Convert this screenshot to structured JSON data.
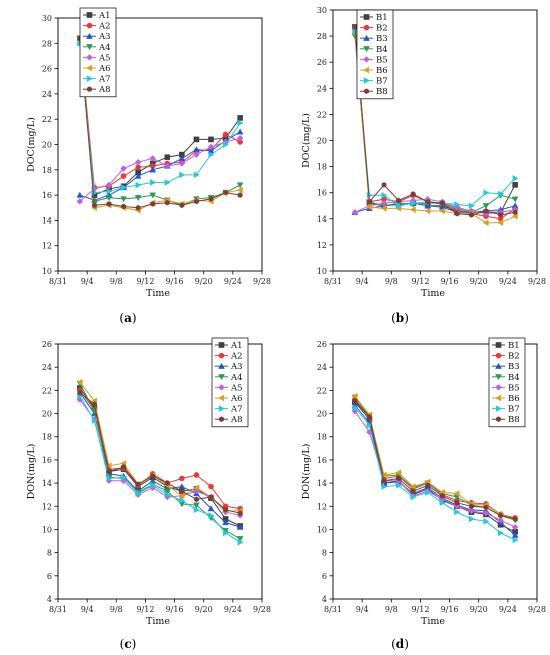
{
  "figure": {
    "panel_labels": [
      "a",
      "b",
      "c",
      "d"
    ]
  },
  "styles": {
    "colors": [
      "#404040",
      "#e83a3a",
      "#2255d0",
      "#2a9a55",
      "#c060e0",
      "#d8a020",
      "#22c8e0",
      "#7a3e33"
    ],
    "markers": [
      "square",
      "circle",
      "triangle-up",
      "triangle-down",
      "diamond",
      "triangle-left",
      "triangle-right",
      "hexagon"
    ]
  },
  "chart_data": [
    {
      "type": "line",
      "panel": "a",
      "xlabel": "Time",
      "ylabel": "DOC(mg/L)",
      "xticks": [
        "8/31",
        "9/4",
        "9/8",
        "9/12",
        "9/16",
        "9/20",
        "9/24",
        "9/28"
      ],
      "xlim": [
        "8/31",
        "9/28"
      ],
      "ylim": [
        10,
        30
      ],
      "yticks": [
        10,
        12,
        14,
        16,
        18,
        20,
        22,
        24,
        26,
        28,
        30
      ],
      "x": [
        "9/3",
        "9/5",
        "9/7",
        "9/9",
        "9/11",
        "9/13",
        "9/15",
        "9/17",
        "9/19",
        "9/21",
        "9/23",
        "9/25"
      ],
      "series": [
        {
          "name": "A1",
          "values": [
            28.4,
            16.0,
            16.5,
            16.7,
            17.8,
            18.5,
            19.0,
            19.2,
            20.4,
            20.4,
            20.5,
            22.1
          ]
        },
        {
          "name": "A2",
          "values": [
            28.4,
            16.6,
            16.7,
            17.5,
            18.2,
            18.3,
            18.5,
            18.6,
            19.5,
            19.6,
            20.8,
            20.2
          ]
        },
        {
          "name": "A3",
          "values": [
            16.0,
            15.6,
            16.0,
            16.6,
            17.5,
            18.0,
            18.3,
            18.9,
            19.6,
            19.5,
            20.3,
            21.0
          ]
        },
        {
          "name": "A4",
          "values": [
            28.4,
            15.5,
            15.8,
            15.7,
            15.8,
            16.0,
            15.6,
            15.2,
            15.7,
            15.8,
            16.2,
            16.8
          ]
        },
        {
          "name": "A5",
          "values": [
            15.5,
            16.5,
            16.8,
            18.1,
            18.6,
            18.9,
            18.3,
            18.5,
            19.2,
            19.8,
            20.2,
            20.5
          ]
        },
        {
          "name": "A6",
          "values": [
            28.4,
            15.0,
            15.2,
            15.0,
            14.8,
            15.4,
            15.6,
            15.3,
            15.6,
            15.5,
            16.2,
            16.4
          ]
        },
        {
          "name": "A7",
          "values": [
            28.0,
            16.2,
            16.3,
            16.6,
            16.8,
            17.0,
            17.0,
            17.6,
            17.6,
            19.2,
            20.0,
            21.7
          ]
        },
        {
          "name": "A8",
          "values": [
            28.4,
            15.2,
            15.3,
            15.1,
            15.0,
            15.3,
            15.4,
            15.2,
            15.5,
            15.7,
            16.2,
            16.0
          ]
        }
      ]
    },
    {
      "type": "line",
      "panel": "b",
      "xlabel": "Time",
      "ylabel": "DOC(mg/L)",
      "xticks": [
        "8/31",
        "9/4",
        "9/8",
        "9/12",
        "9/16",
        "9/20",
        "9/24",
        "9/28"
      ],
      "xlim": [
        "8/31",
        "9/28"
      ],
      "ylim": [
        10,
        30
      ],
      "yticks": [
        10,
        12,
        14,
        16,
        18,
        20,
        22,
        24,
        26,
        28,
        30
      ],
      "x": [
        "9/3",
        "9/5",
        "9/7",
        "9/9",
        "9/11",
        "9/13",
        "9/15",
        "9/17",
        "9/19",
        "9/21",
        "9/23",
        "9/25"
      ],
      "series": [
        {
          "name": "B1",
          "values": [
            28.7,
            15.2,
            15.0,
            15.1,
            15.2,
            15.0,
            15.0,
            14.6,
            14.5,
            14.5,
            14.5,
            16.6
          ]
        },
        {
          "name": "B2",
          "values": [
            28.7,
            15.3,
            15.5,
            15.3,
            15.8,
            15.3,
            15.1,
            14.7,
            14.4,
            14.2,
            14.0,
            14.8
          ]
        },
        {
          "name": "B3",
          "values": [
            14.5,
            14.8,
            15.0,
            15.1,
            15.2,
            15.0,
            14.9,
            14.5,
            14.5,
            14.6,
            14.7,
            15.0
          ]
        },
        {
          "name": "B4",
          "values": [
            28.0,
            15.3,
            15.0,
            15.2,
            15.1,
            15.2,
            15.2,
            14.8,
            14.5,
            15.0,
            15.8,
            15.5
          ]
        },
        {
          "name": "B5",
          "values": [
            14.5,
            15.0,
            15.2,
            15.3,
            15.4,
            15.5,
            15.3,
            14.9,
            14.6,
            14.4,
            14.5,
            14.7
          ]
        },
        {
          "name": "B6",
          "values": [
            28.2,
            14.9,
            14.8,
            14.8,
            14.7,
            14.6,
            14.6,
            14.4,
            14.4,
            13.7,
            13.7,
            14.2
          ]
        },
        {
          "name": "B7",
          "values": [
            28.4,
            15.8,
            15.8,
            15.0,
            15.2,
            15.3,
            15.2,
            15.1,
            15.0,
            16.0,
            15.9,
            17.1
          ]
        },
        {
          "name": "B8",
          "values": [
            28.7,
            15.3,
            16.6,
            15.4,
            15.9,
            15.3,
            15.2,
            14.4,
            14.3,
            14.6,
            14.3,
            14.5
          ]
        }
      ]
    },
    {
      "type": "line",
      "panel": "c",
      "xlabel": "Time",
      "ylabel": "DON(mg/L)",
      "xticks": [
        "8/31",
        "9/4",
        "9/8",
        "9/12",
        "9/16",
        "9/20",
        "9/24",
        "9/28"
      ],
      "xlim": [
        "8/31",
        "9/28"
      ],
      "ylim": [
        4,
        26
      ],
      "yticks": [
        4,
        6,
        8,
        10,
        12,
        14,
        16,
        18,
        20,
        22,
        24,
        26
      ],
      "x": [
        "9/3",
        "9/5",
        "9/7",
        "9/9",
        "9/11",
        "9/13",
        "9/15",
        "9/17",
        "9/19",
        "9/21",
        "9/23",
        "9/25"
      ],
      "series": [
        {
          "name": "A1",
          "values": [
            22.2,
            20.5,
            15.0,
            15.2,
            13.7,
            14.5,
            13.7,
            13.3,
            13.5,
            12.7,
            10.9,
            10.3
          ]
        },
        {
          "name": "A2",
          "values": [
            22.0,
            20.3,
            15.2,
            15.3,
            13.8,
            14.8,
            14.0,
            14.4,
            14.7,
            13.7,
            12.0,
            11.8
          ]
        },
        {
          "name": "A3",
          "values": [
            21.8,
            20.0,
            14.8,
            14.6,
            13.3,
            14.2,
            13.5,
            13.7,
            13.1,
            11.8,
            10.6,
            10.2
          ]
        },
        {
          "name": "A4",
          "values": [
            22.6,
            20.2,
            14.5,
            14.4,
            13.2,
            13.9,
            13.3,
            12.2,
            12.1,
            11.0,
            9.9,
            9.2
          ]
        },
        {
          "name": "A5",
          "values": [
            21.2,
            19.5,
            14.2,
            14.2,
            13.0,
            13.6,
            12.8,
            12.9,
            13.3,
            12.8,
            11.5,
            11.2
          ]
        },
        {
          "name": "A6",
          "values": [
            22.7,
            21.1,
            15.5,
            15.7,
            13.9,
            14.7,
            13.8,
            12.9,
            13.6,
            12.8,
            11.6,
            11.6
          ]
        },
        {
          "name": "A7",
          "values": [
            21.5,
            19.4,
            14.4,
            14.5,
            13.1,
            13.8,
            13.0,
            12.5,
            11.7,
            11.2,
            9.7,
            8.9
          ]
        },
        {
          "name": "A8",
          "values": [
            21.8,
            20.8,
            15.0,
            15.4,
            13.9,
            14.6,
            14.0,
            13.3,
            12.6,
            12.8,
            11.7,
            11.4
          ]
        }
      ]
    },
    {
      "type": "line",
      "panel": "d",
      "xlabel": "Time",
      "ylabel": "DON(mg/L)",
      "xticks": [
        "8/31",
        "9/4",
        "9/8",
        "9/12",
        "9/16",
        "9/20",
        "9/24",
        "9/28"
      ],
      "xlim": [
        "8/31",
        "9/28"
      ],
      "ylim": [
        4,
        26
      ],
      "yticks": [
        4,
        6,
        8,
        10,
        12,
        14,
        16,
        18,
        20,
        22,
        24,
        26
      ],
      "x": [
        "9/3",
        "9/5",
        "9/7",
        "9/9",
        "9/11",
        "9/13",
        "9/15",
        "9/17",
        "9/19",
        "9/21",
        "9/23",
        "9/25"
      ],
      "series": [
        {
          "name": "B1",
          "values": [
            21.0,
            19.5,
            14.0,
            14.2,
            13.0,
            13.5,
            12.5,
            12.0,
            11.5,
            11.3,
            10.4,
            9.8
          ]
        },
        {
          "name": "B2",
          "values": [
            21.2,
            19.7,
            14.4,
            14.6,
            13.5,
            14.0,
            13.0,
            12.5,
            12.3,
            12.2,
            11.3,
            11.0
          ]
        },
        {
          "name": "B3",
          "values": [
            20.7,
            19.2,
            14.0,
            14.1,
            13.1,
            13.6,
            12.7,
            12.1,
            11.7,
            11.6,
            10.6,
            9.5
          ]
        },
        {
          "name": "B4",
          "values": [
            21.4,
            19.8,
            14.6,
            14.7,
            13.6,
            14.0,
            13.1,
            12.8,
            12.1,
            11.9,
            11.2,
            10.8
          ]
        },
        {
          "name": "B5",
          "values": [
            20.2,
            18.4,
            14.2,
            14.2,
            12.9,
            13.3,
            12.6,
            12.0,
            11.6,
            11.4,
            10.8,
            10.2
          ]
        },
        {
          "name": "B6",
          "values": [
            21.5,
            19.9,
            14.7,
            14.9,
            13.7,
            14.1,
            13.2,
            13.1,
            12.2,
            12.1,
            11.3,
            10.9
          ]
        },
        {
          "name": "B7",
          "values": [
            20.5,
            19.0,
            13.7,
            13.8,
            12.8,
            13.2,
            12.3,
            11.5,
            10.9,
            10.7,
            9.7,
            9.1
          ]
        },
        {
          "name": "B8",
          "values": [
            21.1,
            19.7,
            14.2,
            14.4,
            13.3,
            13.8,
            12.9,
            12.3,
            12.0,
            11.9,
            11.2,
            10.9
          ]
        }
      ]
    }
  ]
}
